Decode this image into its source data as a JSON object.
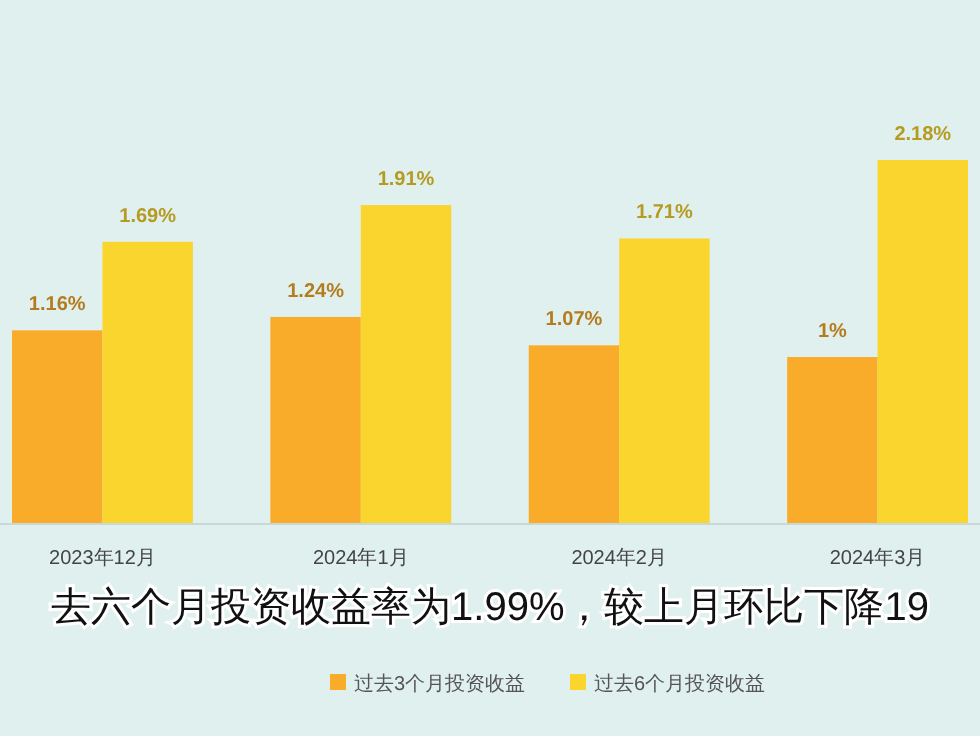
{
  "chart_data": {
    "type": "bar",
    "categories": [
      "2023年12月",
      "2024年1月",
      "2024年2月",
      "2024年3月"
    ],
    "series": [
      {
        "name": "过去3个月投资收益",
        "color": "#f9ab2a",
        "values": [
          1.16,
          1.24,
          1.07,
          1
        ],
        "value_labels": [
          "1.16%",
          "1.24%",
          "1.07%",
          "1%"
        ]
      },
      {
        "name": "过去6个月投资收益",
        "color": "#fad52e",
        "values": [
          1.69,
          1.91,
          1.71,
          2.18
        ],
        "value_labels": [
          "1.69%",
          "1.91%",
          "1.71%",
          "2.18%"
        ]
      }
    ],
    "annotations": [
      "去六个月投资收益率为1.99%，较上月环比下降19"
    ],
    "legend": "bottom",
    "grid": false
  }
}
